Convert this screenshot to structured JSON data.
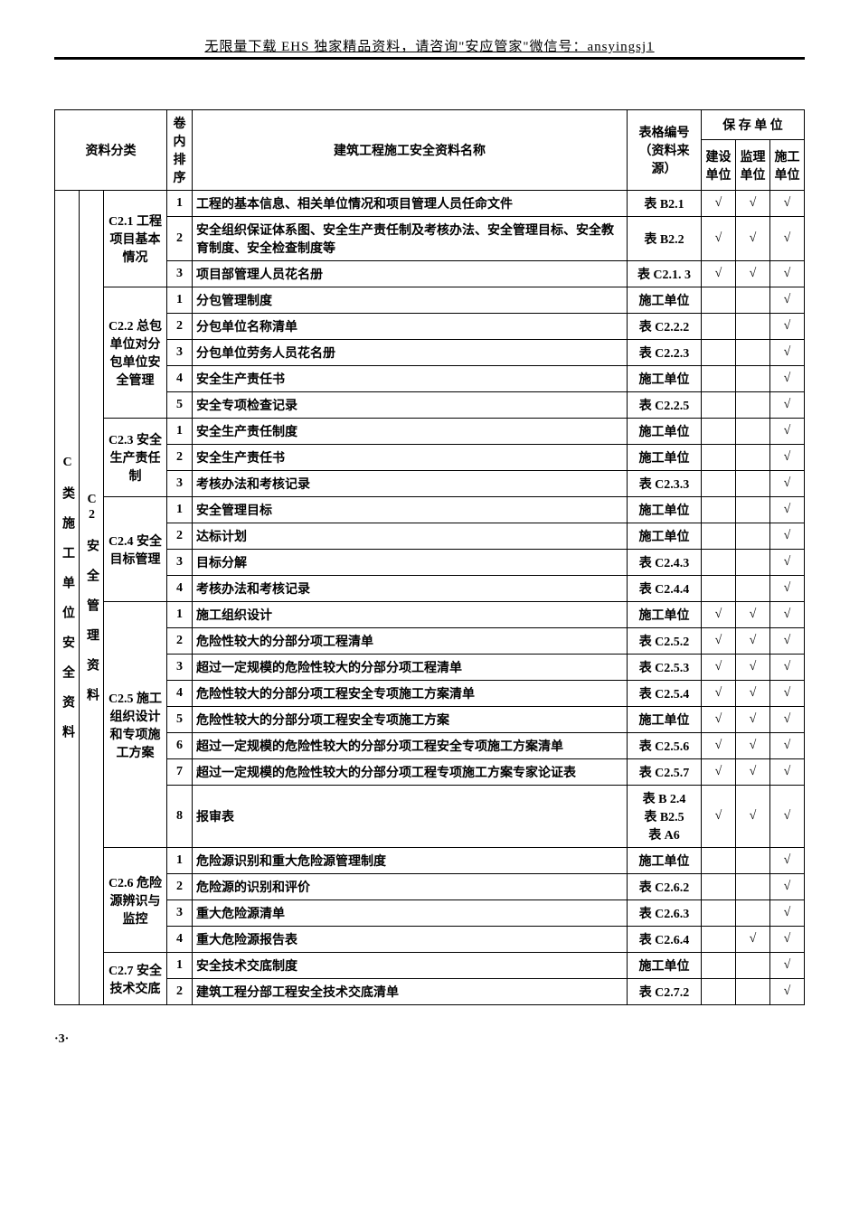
{
  "header": "无限量下载 EHS 独家精品资料，请咨询\"安应管家\"微信号：ansyingsj1",
  "pageNum": "·3·",
  "checkMark": "√",
  "tableHeader": {
    "category": "资料分类",
    "order": "卷内排序",
    "docName": "建筑工程施工安全资料名称",
    "codeCol": "表格编号（资料来源）",
    "storageUnit": "保 存 单 位",
    "construction": "建设单位",
    "supervision": "监理单位",
    "builder": "施工单位"
  },
  "mainCategory": "C 类 施 工 单 位 安 全 资 料",
  "subCategory": "C2 安 全 管 理 资 料",
  "groups": [
    {
      "label": "C2.1 工程项目基本情况",
      "rows": [
        {
          "order": "1",
          "name": "工程的基本信息、相关单位情况和项目管理人员任命文件",
          "code": "表 B2.1",
          "c1": true,
          "c2": true,
          "c3": true
        },
        {
          "order": "2",
          "name": "安全组织保证体系图、安全生产责任制及考核办法、安全管理目标、安全教育制度、安全检查制度等",
          "code": "表 B2.2",
          "c1": true,
          "c2": true,
          "c3": true
        },
        {
          "order": "3",
          "name": "项目部管理人员花名册",
          "code": "表 C2.1. 3",
          "c1": true,
          "c2": true,
          "c3": true
        }
      ]
    },
    {
      "label": "C2.2 总包单位对分包单位安全管理",
      "rows": [
        {
          "order": "1",
          "name": "分包管理制度",
          "code": "施工单位",
          "c1": false,
          "c2": false,
          "c3": true
        },
        {
          "order": "2",
          "name": "分包单位名称清单",
          "code": "表 C2.2.2",
          "c1": false,
          "c2": false,
          "c3": true
        },
        {
          "order": "3",
          "name": "分包单位劳务人员花名册",
          "code": "表 C2.2.3",
          "c1": false,
          "c2": false,
          "c3": true
        },
        {
          "order": "4",
          "name": "安全生产责任书",
          "code": "施工单位",
          "c1": false,
          "c2": false,
          "c3": true
        },
        {
          "order": "5",
          "name": "安全专项检查记录",
          "code": "表 C2.2.5",
          "c1": false,
          "c2": false,
          "c3": true
        }
      ]
    },
    {
      "label": "C2.3 安全生产责任制",
      "rows": [
        {
          "order": "1",
          "name": "安全生产责任制度",
          "code": "施工单位",
          "c1": false,
          "c2": false,
          "c3": true
        },
        {
          "order": "2",
          "name": "安全生产责任书",
          "code": "施工单位",
          "c1": false,
          "c2": false,
          "c3": true
        },
        {
          "order": "3",
          "name": "考核办法和考核记录",
          "code": "表 C2.3.3",
          "c1": false,
          "c2": false,
          "c3": true
        }
      ]
    },
    {
      "label": "C2.4 安全目标管理",
      "rows": [
        {
          "order": "1",
          "name": "安全管理目标",
          "code": "施工单位",
          "c1": false,
          "c2": false,
          "c3": true
        },
        {
          "order": "2",
          "name": "达标计划",
          "code": "施工单位",
          "c1": false,
          "c2": false,
          "c3": true
        },
        {
          "order": "3",
          "name": "目标分解",
          "code": "表 C2.4.3",
          "c1": false,
          "c2": false,
          "c3": true
        },
        {
          "order": "4",
          "name": "考核办法和考核记录",
          "code": "表 C2.4.4",
          "c1": false,
          "c2": false,
          "c3": true
        }
      ]
    },
    {
      "label": "C2.5 施工组织设计和专项施工方案",
      "rows": [
        {
          "order": "1",
          "name": "施工组织设计",
          "code": "施工单位",
          "c1": true,
          "c2": true,
          "c3": true
        },
        {
          "order": "2",
          "name": "危险性较大的分部分项工程清单",
          "code": "表 C2.5.2",
          "c1": true,
          "c2": true,
          "c3": true
        },
        {
          "order": "3",
          "name": "超过一定规模的危险性较大的分部分项工程清单",
          "code": "表 C2.5.3",
          "c1": true,
          "c2": true,
          "c3": true
        },
        {
          "order": "4",
          "name": "危险性较大的分部分项工程安全专项施工方案清单",
          "code": "表 C2.5.4",
          "c1": true,
          "c2": true,
          "c3": true
        },
        {
          "order": "5",
          "name": "危险性较大的分部分项工程安全专项施工方案",
          "code": "施工单位",
          "c1": true,
          "c2": true,
          "c3": true
        },
        {
          "order": "6",
          "name": "超过一定规模的危险性较大的分部分项工程安全专项施工方案清单",
          "code": "表 C2.5.6",
          "c1": true,
          "c2": true,
          "c3": true
        },
        {
          "order": "7",
          "name": "超过一定规模的危险性较大的分部分项工程专项施工方案专家论证表",
          "code": "表 C2.5.7",
          "c1": true,
          "c2": true,
          "c3": true
        },
        {
          "order": "8",
          "name": "报审表",
          "code": "表 B 2.4\n表 B2.5\n表 A6",
          "c1": true,
          "c2": true,
          "c3": true
        }
      ]
    },
    {
      "label": "C2.6 危险源辨识与监控",
      "rows": [
        {
          "order": "1",
          "name": "危险源识别和重大危险源管理制度",
          "code": "施工单位",
          "c1": false,
          "c2": false,
          "c3": true
        },
        {
          "order": "2",
          "name": "危险源的识别和评价",
          "code": "表 C2.6.2",
          "c1": false,
          "c2": false,
          "c3": true
        },
        {
          "order": "3",
          "name": "重大危险源清单",
          "code": "表 C2.6.3",
          "c1": false,
          "c2": false,
          "c3": true
        },
        {
          "order": "4",
          "name": "重大危险源报告表",
          "code": "表 C2.6.4",
          "c1": false,
          "c2": true,
          "c3": true
        }
      ]
    },
    {
      "label": "C2.7 安全技术交底",
      "rows": [
        {
          "order": "1",
          "name": "安全技术交底制度",
          "code": "施工单位",
          "c1": false,
          "c2": false,
          "c3": true
        },
        {
          "order": "2",
          "name": "建筑工程分部工程安全技术交底清单",
          "code": "表 C2.7.2",
          "c1": false,
          "c2": false,
          "c3": true
        }
      ]
    }
  ]
}
